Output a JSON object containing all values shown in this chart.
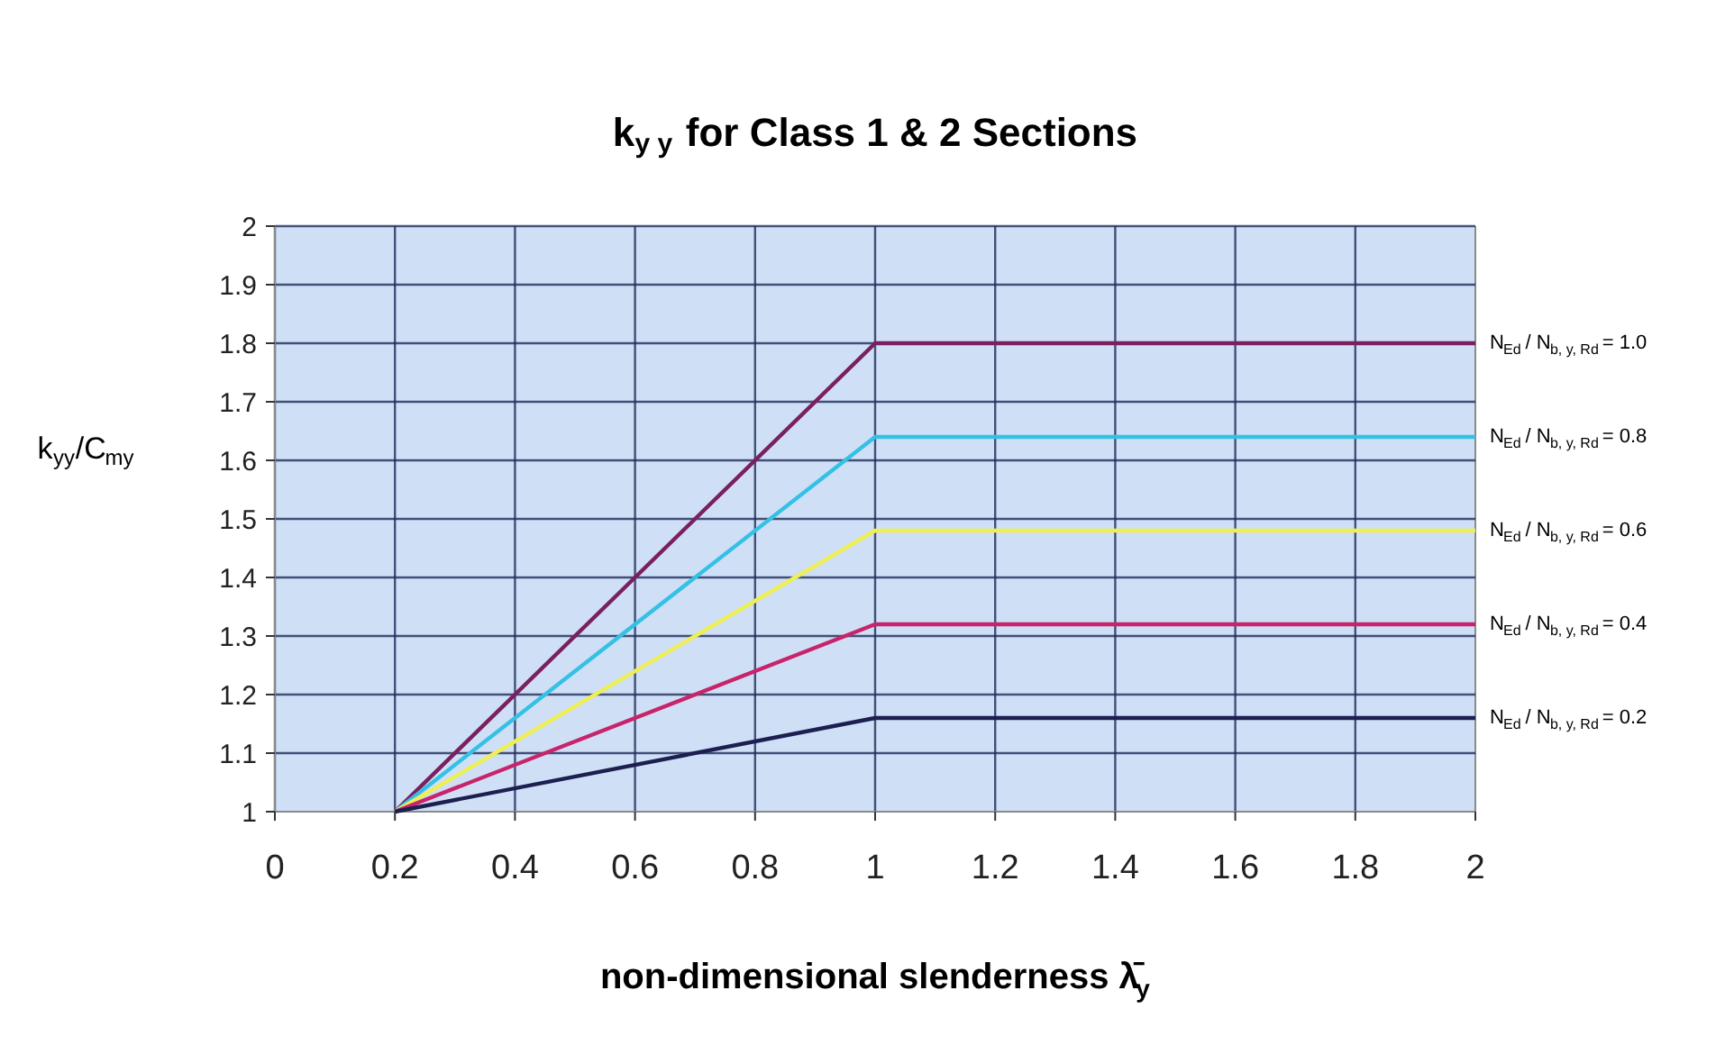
{
  "chart_data": {
    "type": "line",
    "title": "k$_{y y}$ for Class 1 & 2 Sections",
    "xlabel": "non-dimensional slenderness λ̄$_{y}$",
    "ylabel": "k$_{yy}$/C$_{my}$",
    "x": [
      0.2,
      1,
      2
    ],
    "series": [
      {
        "name": "N$_{Ed}$ / N$_{b, y, Rd}$ = 1.0",
        "color": "#7a2060",
        "values": [
          1,
          1.8,
          1.8
        ]
      },
      {
        "name": "N$_{Ed}$ / N$_{b, y, Rd}$ = 0.8",
        "color": "#35c0e6",
        "values": [
          1,
          1.64,
          1.64
        ]
      },
      {
        "name": "N$_{Ed}$ / N$_{b, y, Rd}$ = 0.6",
        "color": "#eeee55",
        "values": [
          1,
          1.48,
          1.48
        ]
      },
      {
        "name": "N$_{Ed}$ / N$_{b, y, Rd}$ = 0.4",
        "color": "#c8246c",
        "values": [
          1,
          1.32,
          1.32
        ]
      },
      {
        "name": "N$_{Ed}$ / N$_{b, y, Rd}$ = 0.2",
        "color": "#1c1f50",
        "values": [
          1,
          1.16,
          1.16
        ]
      }
    ],
    "xlim": [
      0,
      2
    ],
    "xticks": [
      0,
      0.2,
      0.4,
      0.6,
      0.8,
      1,
      1.2,
      1.4,
      1.6,
      1.8,
      2
    ],
    "ylim": [
      1,
      2
    ],
    "yticks": [
      1,
      1.1,
      1.2,
      1.3,
      1.4,
      1.5,
      1.6,
      1.7,
      1.8,
      1.9,
      2
    ],
    "grid": true,
    "marker": "none",
    "line_style": "solid"
  }
}
